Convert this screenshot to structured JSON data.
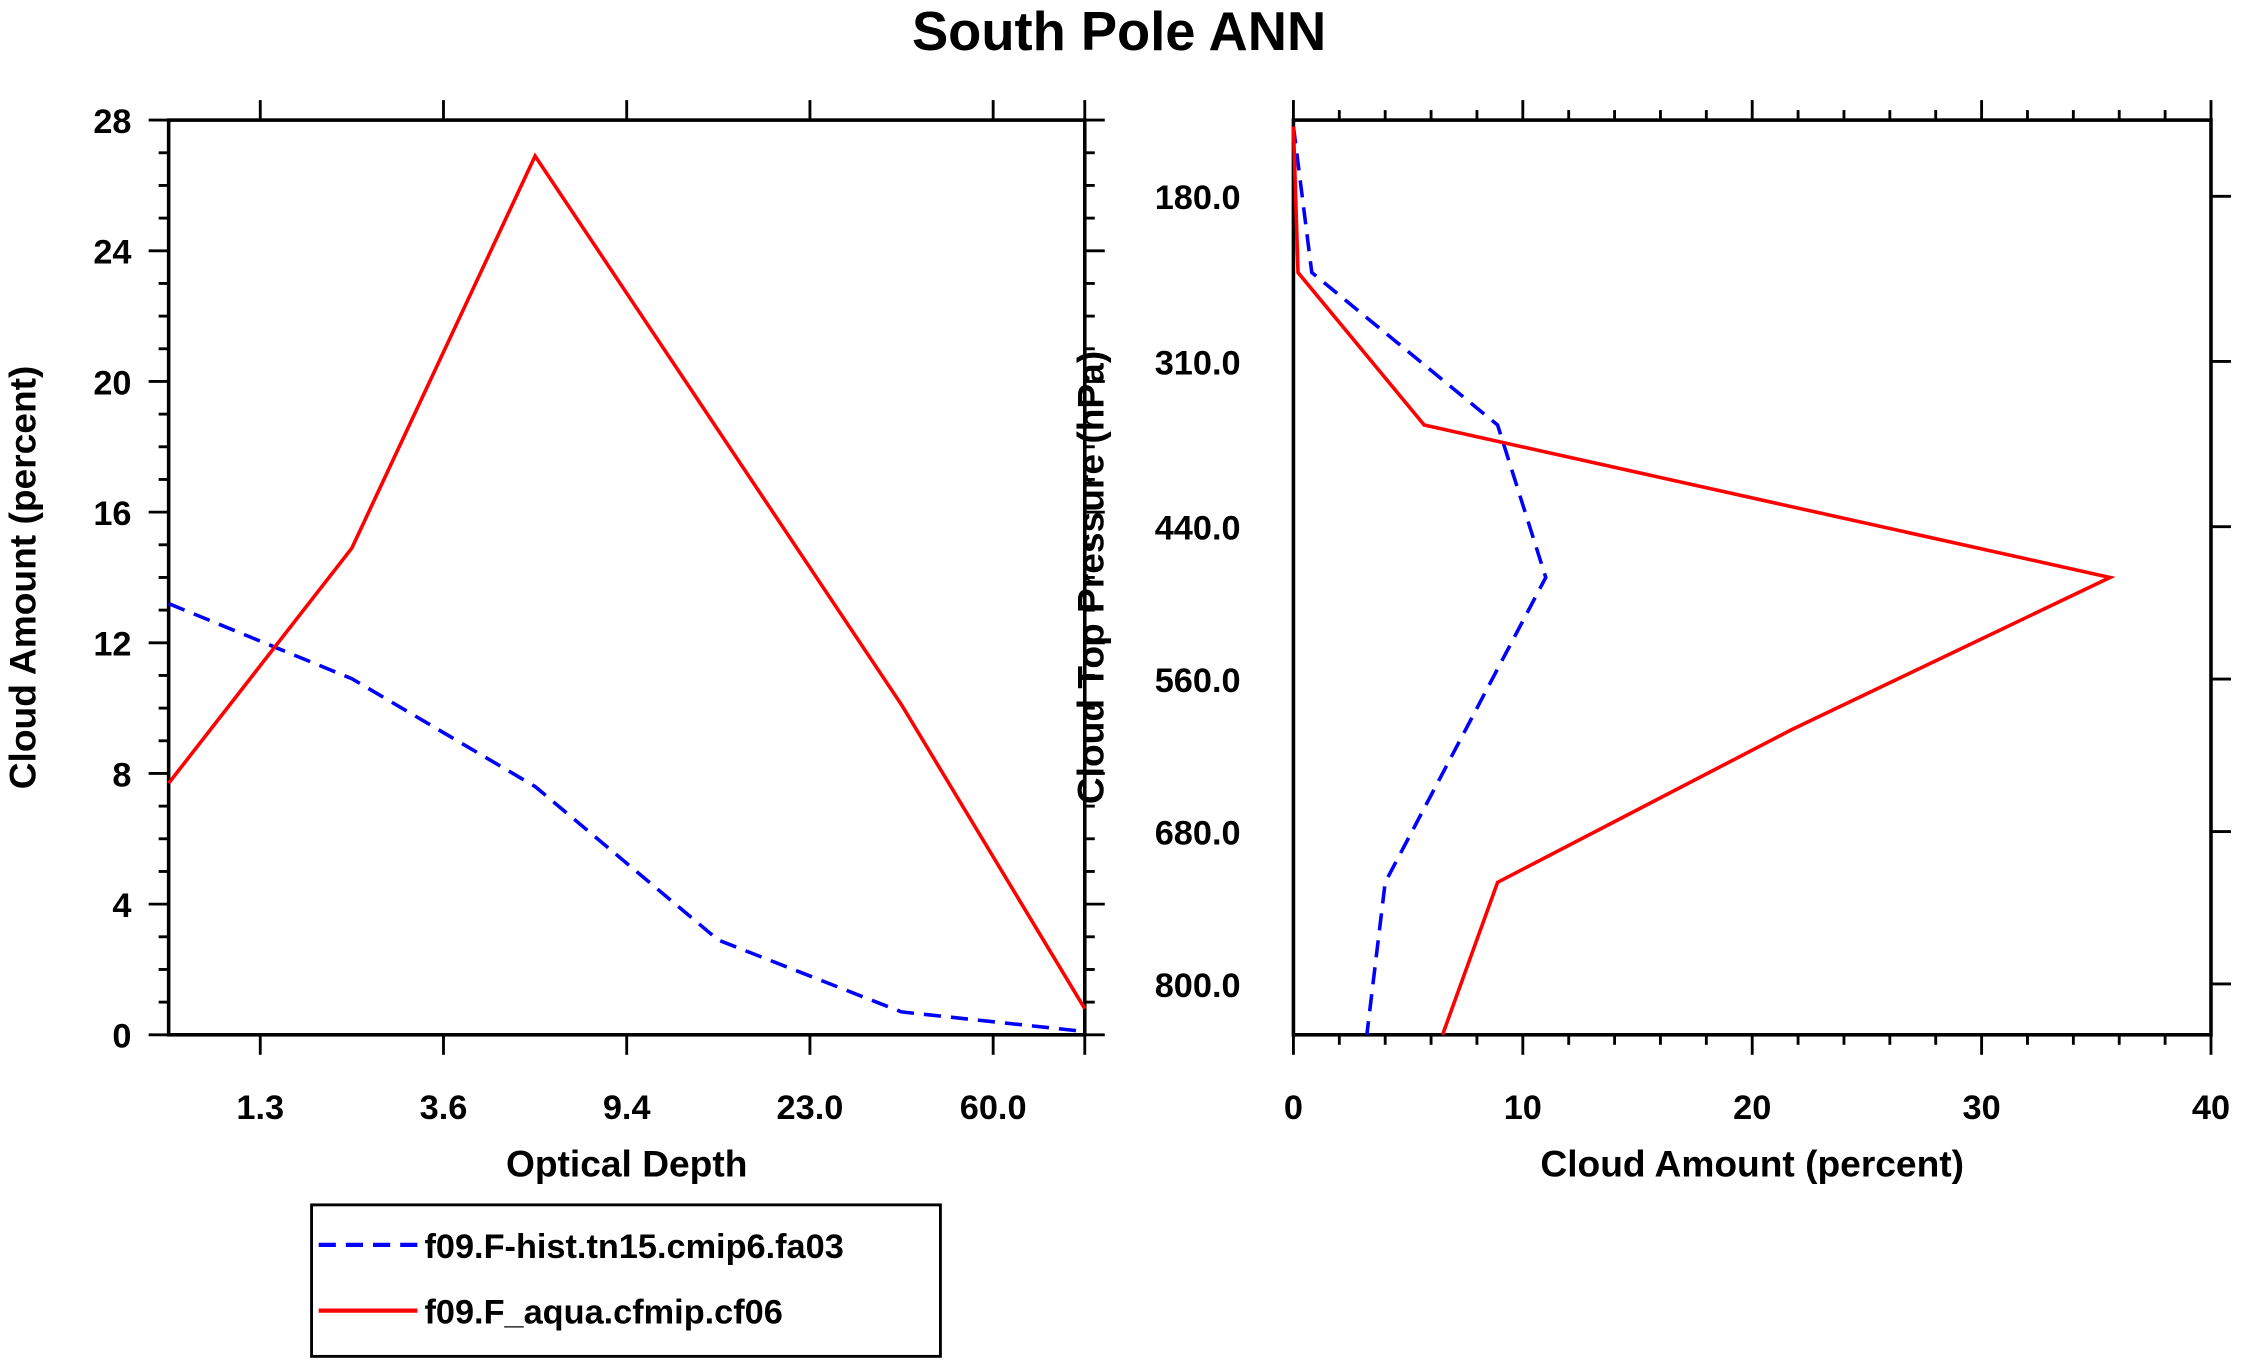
{
  "title": "South Pole ANN",
  "legend": [
    "f09.F-hist.tn15.cmip6.fa03",
    "f09.F_aqua.cfmip.cf06"
  ],
  "colors": {
    "series1": "#0000ff",
    "series2": "#ff0000",
    "axis": "#000000"
  },
  "chart_data": [
    {
      "type": "line",
      "title": "",
      "xlabel": "Optical Depth",
      "ylabel": "Cloud Amount (percent)",
      "x_tick_labels": [
        "1.3",
        "3.6",
        "9.4",
        "23.0",
        "60.0"
      ],
      "x_bins": 6,
      "ylim": [
        0,
        28
      ],
      "y_ticks": [
        "0",
        "4",
        "8",
        "12",
        "16",
        "20",
        "24",
        "28"
      ],
      "series": [
        {
          "name": "f09.F-hist.tn15.cmip6.fa03",
          "style": "dashed",
          "values": [
            13.2,
            10.9,
            7.6,
            2.9,
            0.7,
            0.1
          ]
        },
        {
          "name": "f09.F_aqua.cfmip.cf06",
          "style": "solid",
          "values": [
            7.7,
            14.9,
            26.9,
            18.5,
            10.1,
            0.8
          ]
        }
      ]
    },
    {
      "type": "line",
      "title": "",
      "xlabel": "Cloud Amount (percent)",
      "ylabel": "Cloud Top Pressure (hPa)",
      "xlim": [
        0,
        40
      ],
      "x_ticks": [
        "0",
        "10",
        "20",
        "30",
        "40"
      ],
      "ylim": [
        120,
        840
      ],
      "y_ticks": [
        "180.0",
        "310.0",
        "440.0",
        "560.0",
        "680.0",
        "800.0"
      ],
      "pressure_levels": [
        125,
        240,
        360,
        480,
        600,
        720,
        840
      ],
      "series": [
        {
          "name": "f09.F-hist.tn15.cmip6.fa03",
          "style": "dashed",
          "values": [
            0.0,
            0.8,
            8.9,
            11.0,
            7.5,
            4.0,
            3.2
          ]
        },
        {
          "name": "f09.F_aqua.cfmip.cf06",
          "style": "solid",
          "values": [
            0.0,
            0.2,
            5.7,
            35.6,
            21.7,
            8.9,
            6.5
          ]
        }
      ]
    }
  ]
}
